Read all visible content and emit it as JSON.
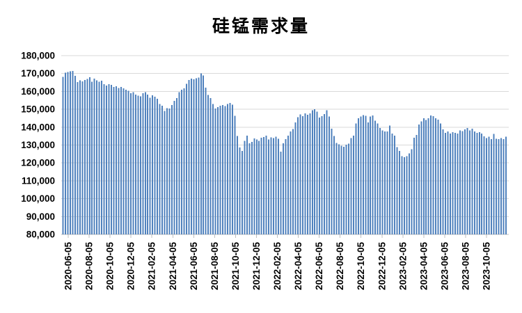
{
  "chart_data": {
    "type": "bar",
    "title": "硅锰需求量",
    "series_name": "硅锰需求量",
    "x_frequency": "weekly",
    "grid": true,
    "legend_position": "none",
    "ylim": [
      80000,
      180000
    ],
    "y_step": 10000,
    "y_tick_labels": [
      "180,000",
      "170,000",
      "160,000",
      "150,000",
      "140,000",
      "130,000",
      "120,000",
      "110,000",
      "100,000",
      "90,000",
      "80,000"
    ],
    "x_tick_labels": [
      "2020-06-05",
      "2020-08-05",
      "2020-10-05",
      "2020-12-05",
      "2021-02-05",
      "2021-04-05",
      "2021-06-05",
      "2021-08-05",
      "2021-10-05",
      "2021-12-05",
      "2022-02-05",
      "2022-04-05",
      "2022-06-05",
      "2022-08-05",
      "2022-10-05",
      "2022-12-05",
      "2023-02-05",
      "2023-04-05",
      "2023-06-05",
      "2023-08-05",
      "2023-10-05"
    ],
    "values": [
      168200,
      170400,
      170800,
      171300,
      171500,
      168800,
      165200,
      166100,
      165700,
      166300,
      166900,
      168000,
      165400,
      167200,
      166200,
      165500,
      165900,
      164100,
      163300,
      164100,
      163600,
      162400,
      162900,
      162000,
      162500,
      161700,
      160900,
      160300,
      159000,
      159600,
      158300,
      157700,
      157200,
      159000,
      159600,
      158300,
      156500,
      157900,
      157100,
      155800,
      152900,
      152000,
      149100,
      150600,
      150400,
      152300,
      154700,
      156200,
      159600,
      160900,
      161700,
      164200,
      166400,
      167100,
      166800,
      167300,
      167700,
      170000,
      169000,
      162200,
      158100,
      156200,
      152900,
      150400,
      151300,
      151900,
      152300,
      151700,
      152900,
      153600,
      152600,
      146300,
      135000,
      128700,
      126700,
      132400,
      135200,
      130900,
      131800,
      133700,
      133100,
      132400,
      134000,
      134400,
      135200,
      133100,
      134200,
      133900,
      134600,
      133600,
      126300,
      131000,
      133400,
      135300,
      137600,
      139000,
      142700,
      145600,
      147200,
      146200,
      147800,
      146900,
      147800,
      149500,
      150000,
      148700,
      145300,
      146200,
      147400,
      149500,
      145900,
      139200,
      135000,
      131200,
      130300,
      129700,
      129000,
      130100,
      130800,
      133900,
      135200,
      142000,
      145000,
      145900,
      146800,
      146300,
      142700,
      145900,
      146500,
      143700,
      142000,
      139500,
      138200,
      137600,
      137600,
      140800,
      136500,
      135300,
      128800,
      126700,
      123700,
      123200,
      123700,
      125400,
      127600,
      134000,
      135600,
      141400,
      143300,
      145000,
      144000,
      145000,
      146500,
      146200,
      145000,
      144200,
      142100,
      138800,
      136900,
      137600,
      136500,
      137200,
      136900,
      136500,
      138200,
      137800,
      138800,
      139500,
      138200,
      139100,
      137600,
      136900,
      137200,
      136500,
      134900,
      133900,
      134600,
      133300,
      136200,
      133600,
      133400,
      133900,
      133400,
      134700
    ],
    "colors": {
      "bar": "#4f81bd",
      "gridline": "#d9d9d9",
      "axis": "#bfbfbf",
      "text": "#000000",
      "background": "#ffffff"
    }
  }
}
